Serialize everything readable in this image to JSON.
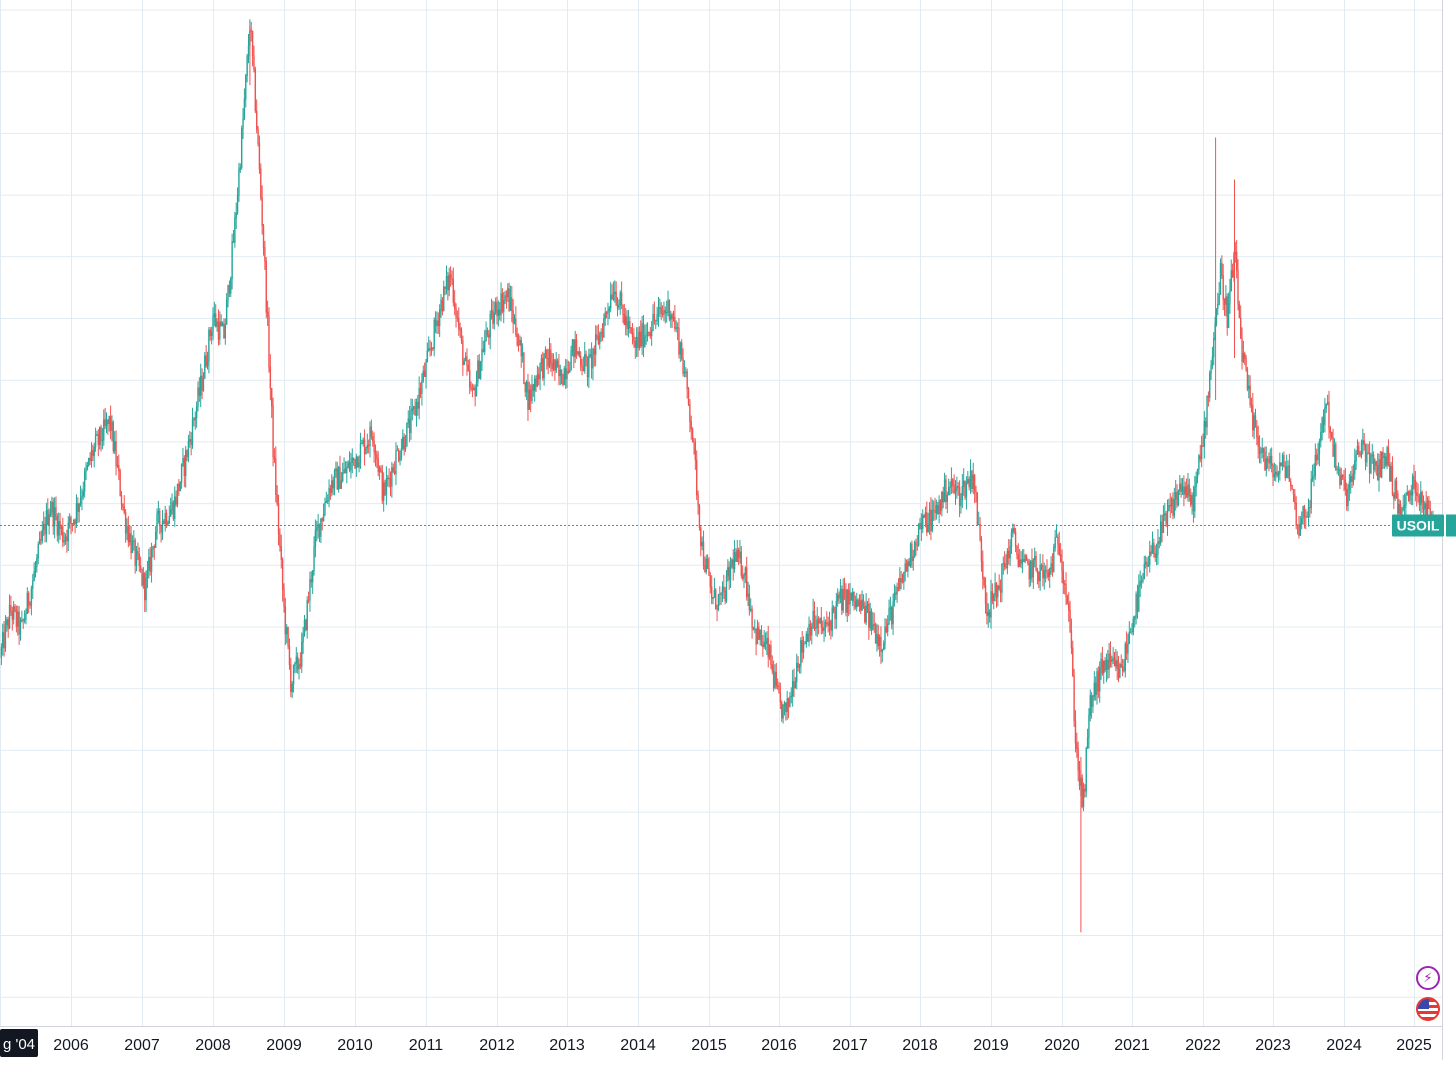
{
  "chart_data": {
    "type": "candlestick",
    "symbol": "USOIL",
    "interval": "weekly",
    "x_axis": {
      "labels": [
        "g '04",
        "2006",
        "2007",
        "2008",
        "2009",
        "2010",
        "2011",
        "2012",
        "2013",
        "2014",
        "2015",
        "2016",
        "2017",
        "2018",
        "2019",
        "2020",
        "2021",
        "2022",
        "2023",
        "2024",
        "2025"
      ],
      "range": [
        2005.0,
        2025.28
      ]
    },
    "y_axis": {
      "scale": "relative",
      "ticks_visible": false
    },
    "grid": true,
    "last_value_line": {
      "label": "USOIL",
      "color": "#26a69a"
    },
    "colors": {
      "up": "#26a69a",
      "down": "#ef5350",
      "grid": "#e1ecf2",
      "axis_text": "#131722",
      "axis_badge_bg": "#131722"
    },
    "price_path_normalized": [
      [
        2005.0,
        0.355
      ],
      [
        2005.15,
        0.4
      ],
      [
        2005.3,
        0.38
      ],
      [
        2005.5,
        0.44
      ],
      [
        2005.7,
        0.5
      ],
      [
        2005.9,
        0.47
      ],
      [
        2006.05,
        0.49
      ],
      [
        2006.3,
        0.55
      ],
      [
        2006.55,
        0.58
      ],
      [
        2006.75,
        0.49
      ],
      [
        2006.9,
        0.45
      ],
      [
        2007.05,
        0.42
      ],
      [
        2007.2,
        0.48
      ],
      [
        2007.45,
        0.5
      ],
      [
        2007.6,
        0.54
      ],
      [
        2007.85,
        0.62
      ],
      [
        2008.0,
        0.68
      ],
      [
        2008.15,
        0.66
      ],
      [
        2008.3,
        0.76
      ],
      [
        2008.45,
        0.89
      ],
      [
        2008.52,
        0.96
      ],
      [
        2008.6,
        0.88
      ],
      [
        2008.72,
        0.74
      ],
      [
        2008.85,
        0.55
      ],
      [
        2009.0,
        0.4
      ],
      [
        2009.1,
        0.33
      ],
      [
        2009.25,
        0.36
      ],
      [
        2009.45,
        0.47
      ],
      [
        2009.65,
        0.52
      ],
      [
        2009.85,
        0.53
      ],
      [
        2010.05,
        0.55
      ],
      [
        2010.25,
        0.57
      ],
      [
        2010.4,
        0.51
      ],
      [
        2010.6,
        0.55
      ],
      [
        2010.8,
        0.58
      ],
      [
        2011.0,
        0.63
      ],
      [
        2011.2,
        0.69
      ],
      [
        2011.35,
        0.72
      ],
      [
        2011.5,
        0.65
      ],
      [
        2011.65,
        0.6
      ],
      [
        2011.8,
        0.65
      ],
      [
        2012.0,
        0.69
      ],
      [
        2012.15,
        0.7
      ],
      [
        2012.3,
        0.66
      ],
      [
        2012.45,
        0.6
      ],
      [
        2012.6,
        0.63
      ],
      [
        2012.75,
        0.64
      ],
      [
        2012.9,
        0.62
      ],
      [
        2013.1,
        0.65
      ],
      [
        2013.3,
        0.63
      ],
      [
        2013.5,
        0.67
      ],
      [
        2013.65,
        0.71
      ],
      [
        2013.8,
        0.68
      ],
      [
        2013.95,
        0.65
      ],
      [
        2014.15,
        0.67
      ],
      [
        2014.3,
        0.68
      ],
      [
        2014.45,
        0.69
      ],
      [
        2014.6,
        0.65
      ],
      [
        2014.75,
        0.58
      ],
      [
        2014.9,
        0.46
      ],
      [
        2015.05,
        0.41
      ],
      [
        2015.2,
        0.41
      ],
      [
        2015.35,
        0.45
      ],
      [
        2015.5,
        0.44
      ],
      [
        2015.65,
        0.38
      ],
      [
        2015.85,
        0.36
      ],
      [
        2016.0,
        0.31
      ],
      [
        2016.1,
        0.3
      ],
      [
        2016.25,
        0.35
      ],
      [
        2016.45,
        0.39
      ],
      [
        2016.65,
        0.38
      ],
      [
        2016.85,
        0.41
      ],
      [
        2017.0,
        0.41
      ],
      [
        2017.2,
        0.4
      ],
      [
        2017.45,
        0.37
      ],
      [
        2017.65,
        0.41
      ],
      [
        2017.85,
        0.45
      ],
      [
        2018.0,
        0.48
      ],
      [
        2018.2,
        0.49
      ],
      [
        2018.4,
        0.52
      ],
      [
        2018.55,
        0.51
      ],
      [
        2018.75,
        0.53
      ],
      [
        2018.85,
        0.46
      ],
      [
        2018.95,
        0.4
      ],
      [
        2019.1,
        0.42
      ],
      [
        2019.3,
        0.47
      ],
      [
        2019.45,
        0.44
      ],
      [
        2019.65,
        0.44
      ],
      [
        2019.8,
        0.43
      ],
      [
        2019.95,
        0.47
      ],
      [
        2020.1,
        0.4
      ],
      [
        2020.2,
        0.27
      ],
      [
        2020.3,
        0.21
      ],
      [
        2020.4,
        0.31
      ],
      [
        2020.6,
        0.35
      ],
      [
        2020.85,
        0.34
      ],
      [
        2021.0,
        0.39
      ],
      [
        2021.2,
        0.44
      ],
      [
        2021.45,
        0.48
      ],
      [
        2021.7,
        0.52
      ],
      [
        2021.85,
        0.5
      ],
      [
        2022.0,
        0.56
      ],
      [
        2022.15,
        0.66
      ],
      [
        2022.25,
        0.72
      ],
      [
        2022.35,
        0.68
      ],
      [
        2022.45,
        0.74
      ],
      [
        2022.55,
        0.65
      ],
      [
        2022.7,
        0.58
      ],
      [
        2022.9,
        0.54
      ],
      [
        2023.05,
        0.53
      ],
      [
        2023.2,
        0.54
      ],
      [
        2023.35,
        0.48
      ],
      [
        2023.5,
        0.5
      ],
      [
        2023.7,
        0.58
      ],
      [
        2023.75,
        0.6
      ],
      [
        2023.9,
        0.53
      ],
      [
        2024.05,
        0.51
      ],
      [
        2024.25,
        0.56
      ],
      [
        2024.45,
        0.53
      ],
      [
        2024.6,
        0.55
      ],
      [
        2024.8,
        0.49
      ],
      [
        2025.0,
        0.52
      ],
      [
        2025.1,
        0.51
      ],
      [
        2025.28,
        0.48
      ]
    ]
  },
  "badges": {
    "events_icon": "lightning-icon",
    "country_icon": "us-flag-icon"
  }
}
